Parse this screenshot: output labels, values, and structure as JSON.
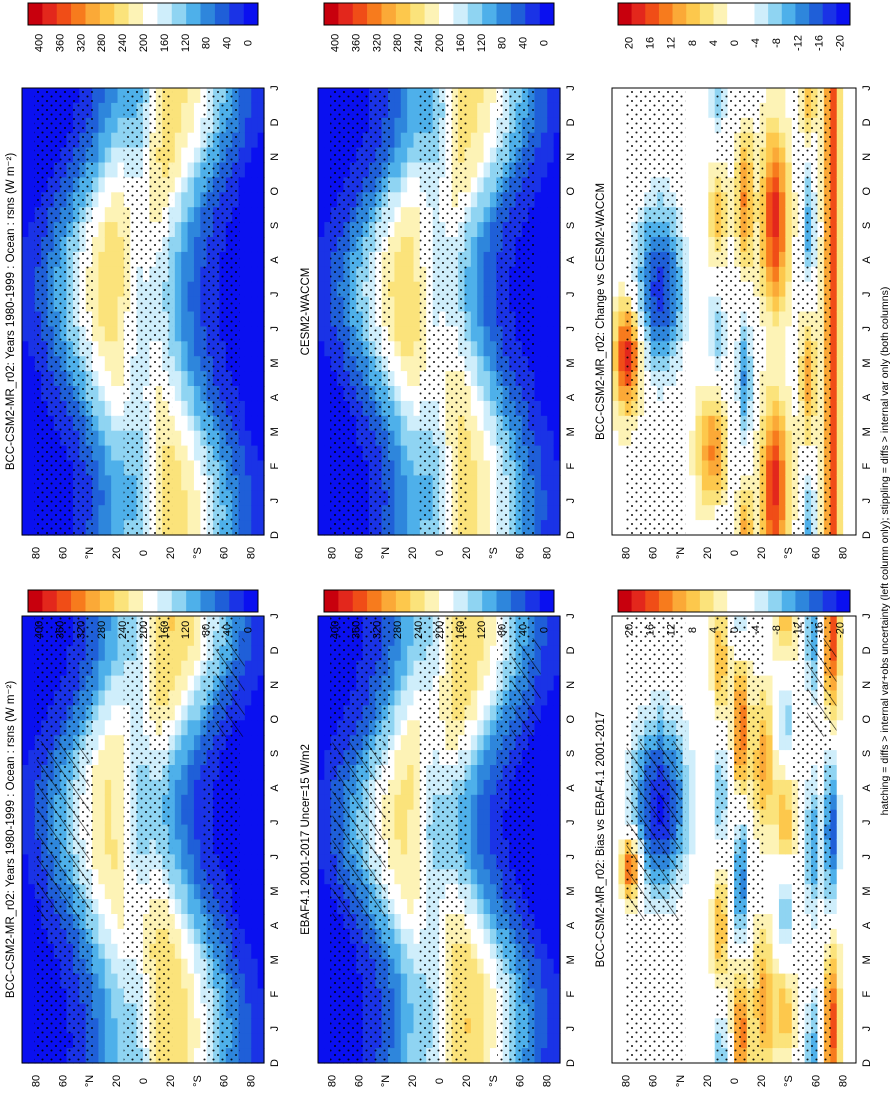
{
  "figure": {
    "footer": "hatching = diffs > internal var+obs uncertainty (left column only); stippling = diffs > internal var only (both columns)"
  },
  "chart_data": [
    {
      "type": "heatmap",
      "title": "BCC-CSM2-MR_r02: Years 1980-1999 : Ocean : rsns (W m⁻²)",
      "x_categories": [
        "D",
        "J",
        "F",
        "M",
        "A",
        "M",
        "J",
        "J",
        "A",
        "S",
        "O",
        "N",
        "D",
        "J"
      ],
      "y_ticks": [
        "80",
        "60",
        "°N",
        "20",
        "0",
        "20",
        "°S",
        "60",
        "80"
      ],
      "y_range": [
        -90,
        90
      ],
      "colorbar_labels": [
        "400",
        "360",
        "320",
        "280",
        "240",
        "200",
        "160",
        "120",
        "80",
        "40",
        "0"
      ],
      "colorbar_range": [
        0,
        420
      ],
      "hatching": true,
      "stippling": true
    },
    {
      "type": "heatmap",
      "title": "EBAF4.1 2001-2017 Uncer=15 W/m2",
      "x_categories": [
        "D",
        "J",
        "F",
        "M",
        "A",
        "M",
        "J",
        "J",
        "A",
        "S",
        "O",
        "N",
        "D",
        "J"
      ],
      "y_ticks": [
        "80",
        "60",
        "°N",
        "20",
        "0",
        "20",
        "°S",
        "60",
        "80"
      ],
      "y_range": [
        -90,
        90
      ],
      "colorbar_labels": [
        "400",
        "360",
        "320",
        "280",
        "240",
        "200",
        "160",
        "120",
        "80",
        "40",
        "0"
      ],
      "colorbar_range": [
        0,
        420
      ],
      "hatching": true,
      "stippling": true
    },
    {
      "type": "heatmap",
      "title": "BCC-CSM2-MR_r02: Bias vs EBAF4.1 2001-2017",
      "x_categories": [
        "D",
        "J",
        "F",
        "M",
        "A",
        "M",
        "J",
        "J",
        "A",
        "S",
        "O",
        "N",
        "D",
        "J"
      ],
      "y_ticks": [
        "80",
        "60",
        "°N",
        "20",
        "0",
        "20",
        "°S",
        "60",
        "80"
      ],
      "y_range": [
        -90,
        90
      ],
      "colorbar_labels": [
        "20",
        "16",
        "12",
        "8",
        "4",
        "0",
        "-4",
        "-8",
        "-12",
        "-16",
        "-20"
      ],
      "colorbar_range": [
        -22,
        22
      ],
      "hatching": true,
      "stippling": true
    },
    {
      "type": "heatmap",
      "title": "BCC-CSM2-MR_r02: Years 1980-1999 : Ocean : rsns (W m⁻²)",
      "x_categories": [
        "D",
        "J",
        "F",
        "M",
        "A",
        "M",
        "J",
        "J",
        "A",
        "S",
        "O",
        "N",
        "D",
        "J"
      ],
      "y_ticks": [
        "80",
        "60",
        "°N",
        "20",
        "0",
        "20",
        "°S",
        "60",
        "80"
      ],
      "y_range": [
        -90,
        90
      ],
      "colorbar_labels": [
        "400",
        "360",
        "320",
        "280",
        "240",
        "200",
        "160",
        "120",
        "80",
        "40",
        "0"
      ],
      "colorbar_range": [
        0,
        420
      ],
      "hatching": false,
      "stippling": true
    },
    {
      "type": "heatmap",
      "title": "CESM2-WACCM",
      "x_categories": [
        "D",
        "J",
        "F",
        "M",
        "A",
        "M",
        "J",
        "J",
        "A",
        "S",
        "O",
        "N",
        "D",
        "J"
      ],
      "y_ticks": [
        "80",
        "60",
        "°N",
        "20",
        "0",
        "20",
        "°S",
        "60",
        "80"
      ],
      "y_range": [
        -90,
        90
      ],
      "colorbar_labels": [
        "400",
        "360",
        "320",
        "280",
        "240",
        "200",
        "160",
        "120",
        "80",
        "40",
        "0"
      ],
      "colorbar_range": [
        0,
        420
      ],
      "hatching": false,
      "stippling": true
    },
    {
      "type": "heatmap",
      "title": "BCC-CSM2-MR_r02: Change vs CESM2-WACCM",
      "x_categories": [
        "D",
        "J",
        "F",
        "M",
        "A",
        "M",
        "J",
        "J",
        "A",
        "S",
        "O",
        "N",
        "D",
        "J"
      ],
      "y_ticks": [
        "80",
        "60",
        "°N",
        "20",
        "0",
        "20",
        "°S",
        "60",
        "80"
      ],
      "y_range": [
        -90,
        90
      ],
      "colorbar_labels": [
        "20",
        "16",
        "12",
        "8",
        "4",
        "0",
        "-4",
        "-8",
        "-12",
        "-16",
        "-20"
      ],
      "colorbar_range": [
        -22,
        22
      ],
      "hatching": false,
      "stippling": true
    }
  ]
}
